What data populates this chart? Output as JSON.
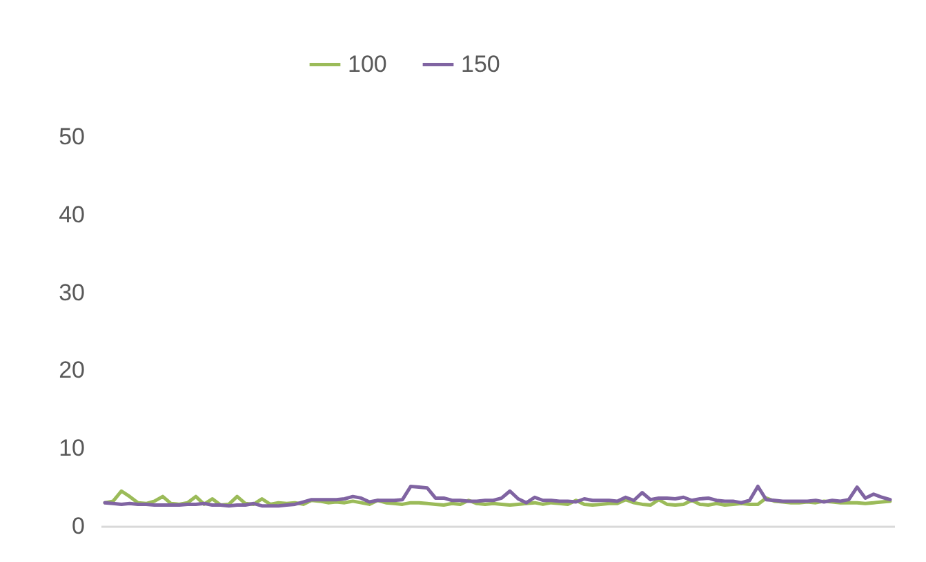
{
  "chart_data": {
    "type": "line",
    "categories": [
      null,
      null,
      null,
      null,
      null,
      null,
      null,
      null,
      null,
      null,
      null,
      null,
      null,
      null,
      null,
      null,
      null,
      null,
      null,
      null,
      null,
      null,
      null,
      null,
      null,
      null,
      null,
      null,
      null,
      null,
      null,
      null,
      null,
      null,
      null,
      null,
      null,
      null,
      null,
      null,
      null,
      null,
      null,
      null,
      null,
      null,
      null,
      null,
      null,
      null,
      null,
      null,
      null,
      null,
      null,
      null,
      null,
      null,
      null,
      null,
      null,
      null,
      null,
      null,
      null,
      null,
      null,
      null,
      null,
      null,
      null,
      null,
      null,
      null,
      null,
      null,
      null,
      null,
      null,
      null,
      null,
      null,
      null,
      null,
      null,
      null,
      null,
      null,
      null,
      null,
      null,
      null,
      null,
      null,
      null,
      null
    ],
    "series": [
      {
        "name": "100",
        "color": "#9bbb59",
        "values": [
          3.0,
          3.2,
          4.5,
          3.8,
          3.0,
          2.9,
          3.2,
          3.8,
          2.9,
          2.8,
          3.0,
          3.8,
          2.8,
          3.5,
          2.7,
          2.8,
          3.8,
          2.9,
          2.8,
          3.5,
          2.8,
          3.0,
          2.9,
          3.0,
          2.8,
          3.3,
          3.2,
          3.0,
          3.1,
          3.0,
          3.2,
          3.0,
          2.8,
          3.3,
          3.0,
          2.9,
          2.8,
          3.0,
          3.0,
          2.9,
          2.8,
          2.7,
          2.9,
          2.8,
          3.3,
          2.9,
          2.8,
          2.9,
          2.8,
          2.7,
          2.8,
          2.9,
          3.0,
          2.8,
          3.0,
          2.9,
          2.8,
          3.3,
          2.8,
          2.7,
          2.8,
          2.9,
          2.9,
          3.4,
          3.0,
          2.8,
          2.7,
          3.4,
          2.8,
          2.7,
          2.8,
          3.3,
          2.8,
          2.7,
          2.9,
          2.7,
          2.8,
          2.9,
          2.8,
          2.8,
          3.6,
          3.2,
          3.1,
          3.0,
          3.0,
          3.1,
          3.0,
          3.2,
          3.1,
          3.0,
          3.0,
          3.0,
          2.9,
          3.0,
          3.1,
          3.2
        ]
      },
      {
        "name": "150",
        "color": "#8064a2",
        "values": [
          3.0,
          2.9,
          2.8,
          2.9,
          2.8,
          2.8,
          2.7,
          2.7,
          2.7,
          2.7,
          2.8,
          2.8,
          2.9,
          2.7,
          2.7,
          2.6,
          2.7,
          2.7,
          2.9,
          2.6,
          2.6,
          2.6,
          2.7,
          2.8,
          3.1,
          3.4,
          3.4,
          3.4,
          3.4,
          3.5,
          3.8,
          3.6,
          3.1,
          3.3,
          3.3,
          3.3,
          3.4,
          5.1,
          5.0,
          4.9,
          3.6,
          3.6,
          3.3,
          3.3,
          3.2,
          3.2,
          3.3,
          3.3,
          3.6,
          4.5,
          3.5,
          3.0,
          3.7,
          3.3,
          3.3,
          3.2,
          3.2,
          3.1,
          3.5,
          3.3,
          3.3,
          3.3,
          3.2,
          3.7,
          3.3,
          4.3,
          3.4,
          3.6,
          3.6,
          3.5,
          3.7,
          3.3,
          3.5,
          3.6,
          3.3,
          3.2,
          3.2,
          3.0,
          3.3,
          5.1,
          3.4,
          3.3,
          3.2,
          3.2,
          3.2,
          3.2,
          3.3,
          3.1,
          3.3,
          3.2,
          3.4,
          5.0,
          3.6,
          4.1,
          3.7,
          3.4
        ]
      }
    ],
    "ylim": [
      0,
      50
    ],
    "yticks": [
      0,
      10,
      20,
      30,
      40,
      50
    ],
    "legend": "top",
    "marker": "none",
    "line_style": "solid",
    "grid": false,
    "tick_labels": "y"
  }
}
